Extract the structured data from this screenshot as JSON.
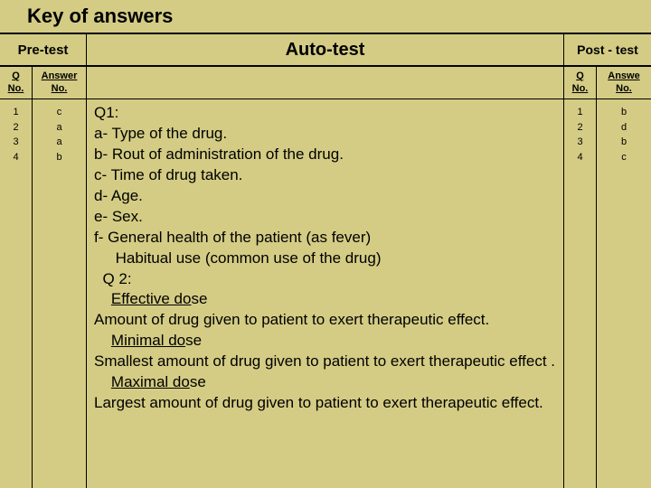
{
  "title": "Key of answers",
  "headers": {
    "pretest": "Pre-test",
    "autotest": "Auto-test",
    "posttest": "Post - test"
  },
  "subheaders": {
    "q": "Q",
    "no": "No.",
    "answer": "Answer",
    "answe": "Answe"
  },
  "pretest": {
    "qnums": [
      "1",
      "2",
      "3",
      "4"
    ],
    "answers": [
      "c",
      "a",
      "a",
      "b"
    ]
  },
  "posttest": {
    "qnums": [
      "1",
      "2",
      "3",
      "4"
    ],
    "answers": [
      "b",
      "d",
      "b",
      "c"
    ]
  },
  "content": {
    "q1_label": "Q1:",
    "q1_a": "a-  Type of the drug.",
    "q1_b": "b-  Rout of administration of the drug.",
    "q1_c": "c-  Time of drug taken.",
    "q1_d": "d-  Age.",
    "q1_e": "e-  Sex.",
    "q1_f": " f-  General health of the patient (as fever)",
    "q1_f2": "     Habitual use (common use of the drug)",
    "q2_label": "  Q 2:",
    "q2_eff": "Effective do",
    "q2_se": "se",
    "q2_eff_def": "Amount of drug given to patient to exert therapeutic effect.",
    "q2_min": "Minimal do",
    "q2_min_def": "Smallest amount of drug given to patient to exert therapeutic effect .",
    "q2_max": "Maximal do",
    "q2_max_def": "Largest amount of drug given to patient to exert therapeutic effect."
  },
  "colors": {
    "background": "#d4cc84",
    "border": "#000000",
    "text": "#000000"
  }
}
